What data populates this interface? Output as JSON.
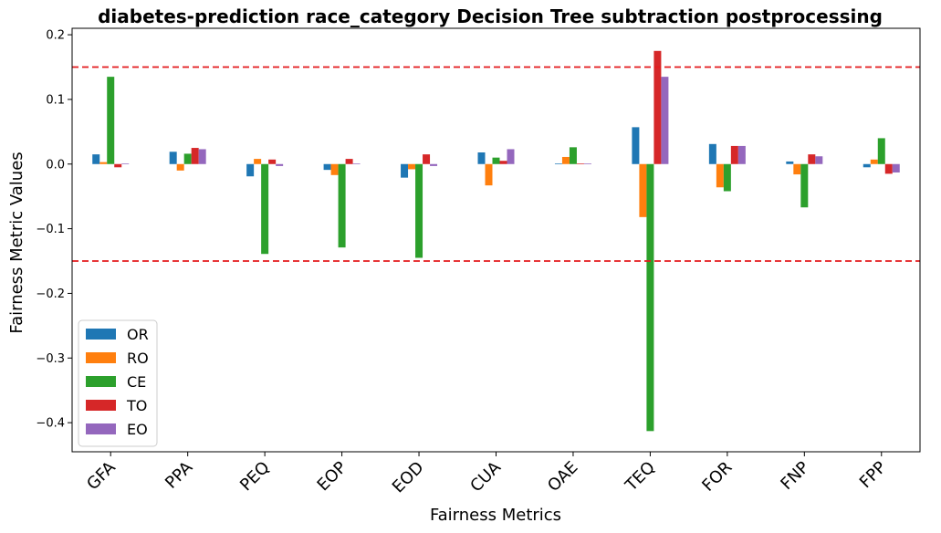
{
  "chart_data": {
    "type": "bar",
    "title": "diabetes-prediction race_category Decision Tree subtraction postprocessing",
    "xlabel": "Fairness Metrics",
    "ylabel": "Fairness Metric Values",
    "categories": [
      "GFA",
      "PPA",
      "PEQ",
      "EOP",
      "EOD",
      "CUA",
      "OAE",
      "TEQ",
      "FOR",
      "FNP",
      "FPP"
    ],
    "ylim": [
      -0.445,
      0.21
    ],
    "yticks": [
      -0.4,
      -0.3,
      -0.2,
      -0.1,
      0.0,
      0.1,
      0.2
    ],
    "ytick_labels": [
      "−0.4",
      "−0.3",
      "−0.2",
      "−0.1",
      "0.0",
      "0.1",
      "0.2"
    ],
    "thresholds": [
      0.15,
      -0.15
    ],
    "threshold_color": "#e41a1c",
    "legend_position": "lower-left",
    "grid": false,
    "series": [
      {
        "name": "OR",
        "color": "#1f77b4",
        "values": [
          0.015,
          0.019,
          -0.019,
          -0.009,
          -0.021,
          0.018,
          0.001,
          0.057,
          0.031,
          0.004,
          -0.005
        ]
      },
      {
        "name": "RO",
        "color": "#ff7f0e",
        "values": [
          0.003,
          -0.01,
          0.008,
          -0.017,
          -0.008,
          -0.033,
          0.011,
          -0.082,
          -0.036,
          -0.016,
          0.007
        ]
      },
      {
        "name": "CE",
        "color": "#2ca02c",
        "values": [
          0.135,
          0.016,
          -0.139,
          -0.129,
          -0.145,
          0.01,
          0.026,
          -0.413,
          -0.042,
          -0.067,
          0.04
        ]
      },
      {
        "name": "TO",
        "color": "#d62728",
        "values": [
          -0.005,
          0.025,
          0.007,
          0.008,
          0.015,
          0.005,
          0.001,
          0.175,
          0.028,
          0.015,
          -0.015
        ]
      },
      {
        "name": "EO",
        "color": "#9467bd",
        "values": [
          0.001,
          0.023,
          -0.003,
          0.001,
          -0.003,
          0.023,
          0.001,
          0.135,
          0.028,
          0.012,
          -0.013
        ]
      }
    ]
  }
}
